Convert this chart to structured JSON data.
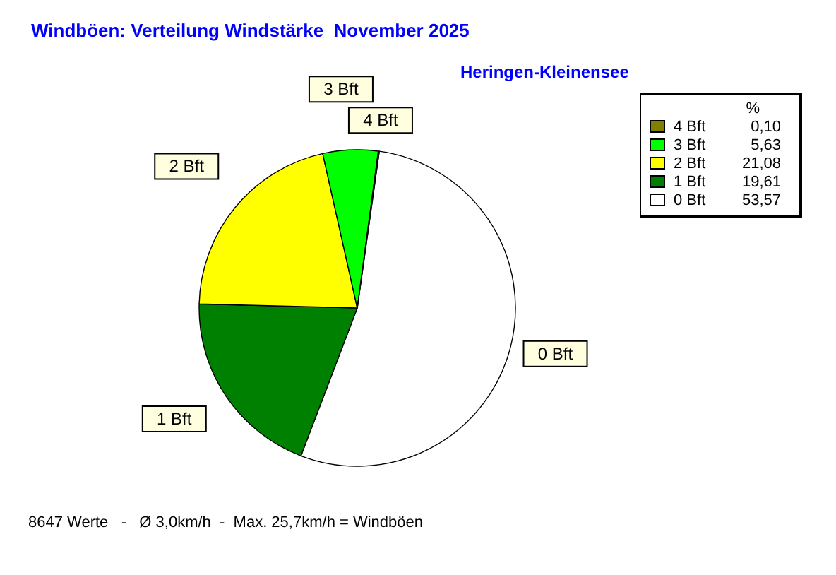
{
  "chart_data": {
    "type": "pie",
    "title": "Windböen: Verteilung Windstärke  November 2025",
    "subtitle": "Heringen-Kleinensee",
    "legend_title": "%",
    "legend": "top right",
    "categories": [
      "0 Bft",
      "1 Bft",
      "2 Bft",
      "3 Bft",
      "4 Bft"
    ],
    "values": [
      53.57,
      19.61,
      21.08,
      5.63,
      0.1
    ],
    "value_labels": [
      "53,57",
      "19,61",
      "21,08",
      "5,63",
      "0,10"
    ],
    "colors": [
      "#ffffff",
      "#008000",
      "#ffff00",
      "#00ff00",
      "#808000"
    ],
    "annotations": [
      "8647 Werte   -   Ø 3,0km/h  -  Max. 25,7km/h = Windböen"
    ]
  }
}
